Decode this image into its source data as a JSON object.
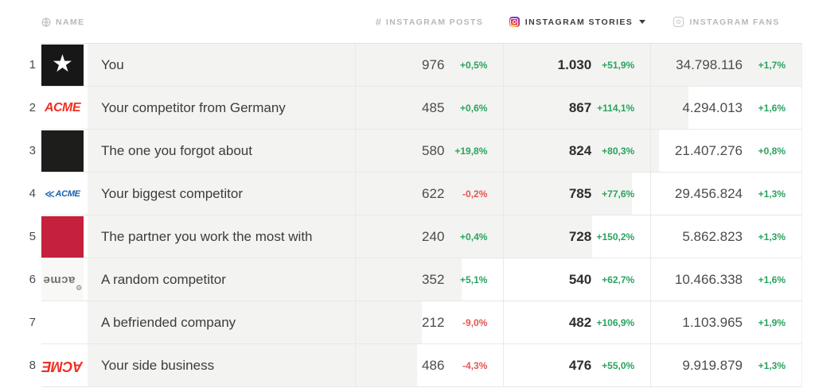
{
  "header": {
    "name": {
      "icon": "globe-icon",
      "label": "NAME"
    },
    "posts": {
      "icon": "hash-icon",
      "icon_glyph": "#",
      "label": "INSTAGRAM POSTS"
    },
    "stories": {
      "icon": "instagram-icon",
      "label": "INSTAGRAM STORIES",
      "sorted": true
    },
    "fans": {
      "icon": "instagram-icon",
      "label": "INSTAGRAM FANS"
    }
  },
  "colors": {
    "positive": "#2aa35f",
    "negative": "#e15752",
    "row_bar": "#f3f3f1",
    "sorted_header_text": "#3d3d3d",
    "header_text": "#b9b8b6"
  },
  "rows": [
    {
      "rank": "1",
      "logo": {
        "type": "star-black",
        "text": "★"
      },
      "name": "You",
      "posts": "976",
      "posts_change": "+0,5%",
      "posts_trend": "up",
      "stories": "1.030",
      "stories_change": "+51,9%",
      "stories_trend": "up",
      "fans": "34.798.116",
      "fans_change": "+1,7%",
      "fans_trend": "up",
      "bar_pct": 100
    },
    {
      "rank": "2",
      "logo": {
        "type": "acme-red",
        "text": "ACME"
      },
      "name": "Your competitor from Germany",
      "posts": "485",
      "posts_change": "+0,6%",
      "posts_trend": "up",
      "stories": "867",
      "stories_change": "+114,1%",
      "stories_trend": "up",
      "fans": "4.294.013",
      "fans_change": "+1,6%",
      "fans_trend": "up",
      "bar_pct": 84.2
    },
    {
      "rank": "3",
      "logo": {
        "type": "black",
        "text": ""
      },
      "name": "The one you forgot about",
      "posts": "580",
      "posts_change": "+19,8%",
      "posts_trend": "up",
      "stories": "824",
      "stories_change": "+80,3%",
      "stories_trend": "up",
      "fans": "21.407.276",
      "fans_change": "+0,8%",
      "fans_trend": "up",
      "bar_pct": 80.0
    },
    {
      "rank": "4",
      "logo": {
        "type": "acme-blue",
        "prefix": "≪",
        "text": "ACME"
      },
      "name": "Your biggest competitor",
      "posts": "622",
      "posts_change": "-0,2%",
      "posts_trend": "down",
      "stories": "785",
      "stories_change": "+77,6%",
      "stories_trend": "up",
      "fans": "29.456.824",
      "fans_change": "+1,3%",
      "fans_trend": "up",
      "bar_pct": 76.2
    },
    {
      "rank": "5",
      "logo": {
        "type": "crimson",
        "text": ""
      },
      "name": "The partner you work the most with",
      "posts": "240",
      "posts_change": "+0,4%",
      "posts_trend": "up",
      "stories": "728",
      "stories_change": "+150,2%",
      "stories_trend": "up",
      "fans": "5.862.823",
      "fans_change": "+1,3%",
      "fans_trend": "up",
      "bar_pct": 70.7
    },
    {
      "rank": "6",
      "logo": {
        "type": "acme-gray-flipped",
        "text": "acme",
        "suffix": "⚙"
      },
      "name": "A random competitor",
      "posts": "352",
      "posts_change": "+5,1%",
      "posts_trend": "up",
      "stories": "540",
      "stories_change": "+62,7%",
      "stories_trend": "up",
      "fans": "10.466.338",
      "fans_change": "+1,6%",
      "fans_trend": "up",
      "bar_pct": 52.4
    },
    {
      "rank": "7",
      "logo": {
        "type": "none",
        "text": ""
      },
      "name": "A befriended company",
      "posts": "212",
      "posts_change": "-9,0%",
      "posts_trend": "down",
      "stories": "482",
      "stories_change": "+106,9%",
      "stories_trend": "up",
      "fans": "1.103.965",
      "fans_change": "+1,9%",
      "fans_trend": "up",
      "bar_pct": 46.8
    },
    {
      "rank": "8",
      "logo": {
        "type": "acme-red-flipped",
        "text": "ACME"
      },
      "name": "Your side business",
      "posts": "486",
      "posts_change": "-4,3%",
      "posts_trend": "down",
      "stories": "476",
      "stories_change": "+55,0%",
      "stories_trend": "up",
      "fans": "9.919.879",
      "fans_change": "+1,3%",
      "fans_trend": "up",
      "bar_pct": 46.2
    }
  ]
}
